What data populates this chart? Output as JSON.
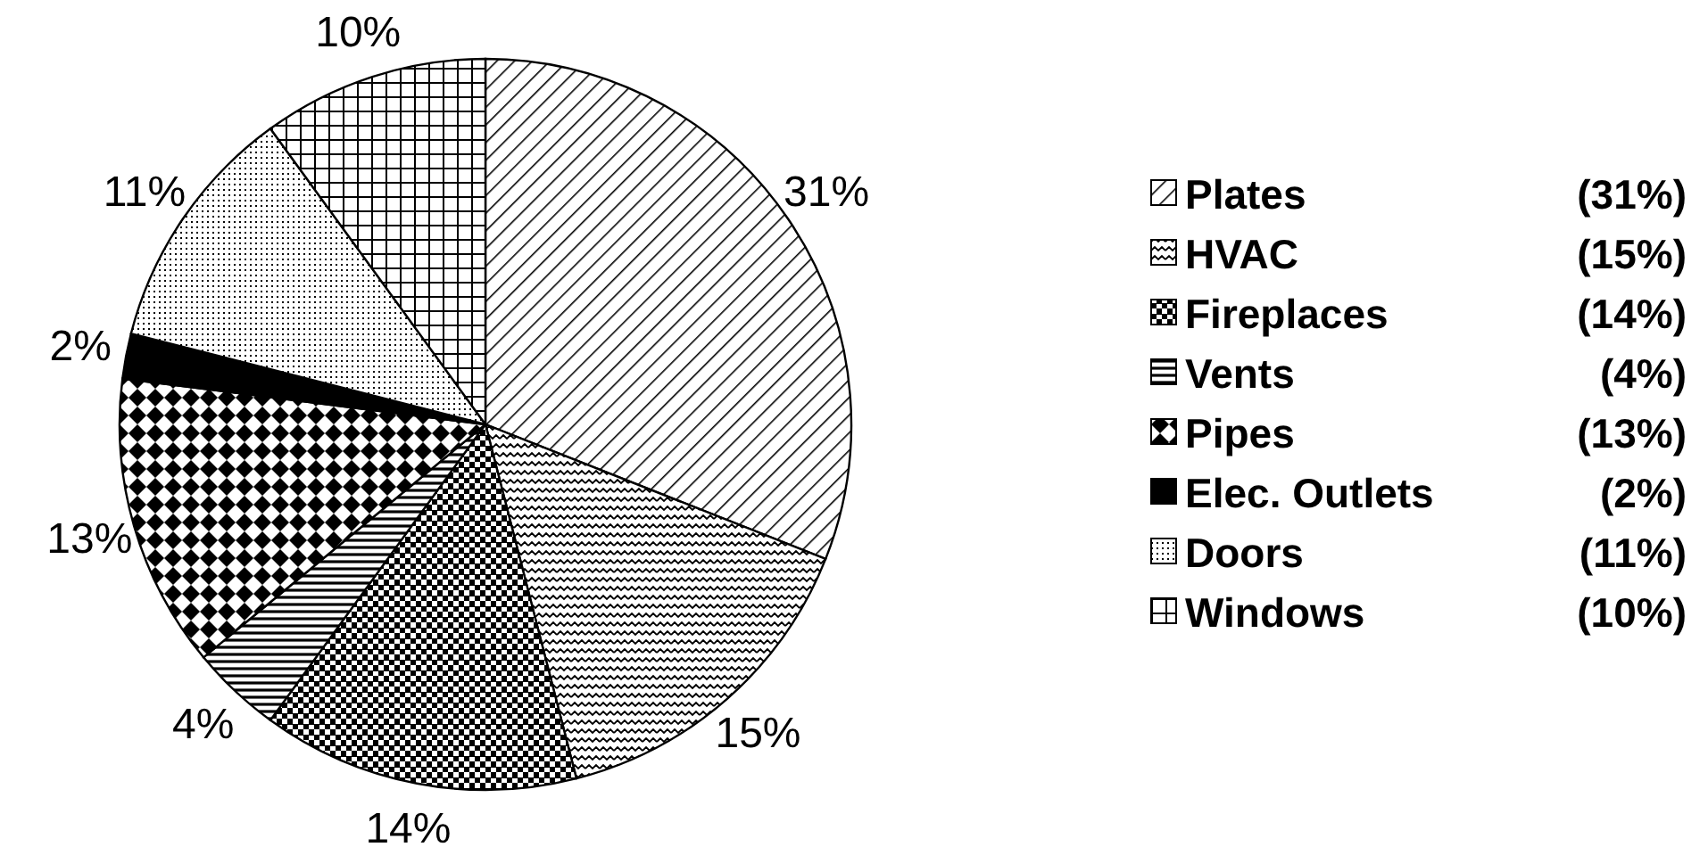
{
  "chart_data": {
    "type": "pie",
    "categories": [
      "Plates",
      "HVAC",
      "Fireplaces",
      "Vents",
      "Pipes",
      "Elec. Outlets",
      "Doors",
      "Windows"
    ],
    "values": [
      31,
      15,
      14,
      4,
      13,
      2,
      11,
      10
    ],
    "value_labels": [
      "31%",
      "15%",
      "14%",
      "4%",
      "13%",
      "2%",
      "11%",
      "10%"
    ],
    "colors": [
      "#000000",
      "#000000",
      "#000000",
      "#000000",
      "#000000",
      "#000000",
      "#000000",
      "#000000"
    ],
    "annotations": [
      "(31%)",
      "(15%)",
      "(14%)",
      "(4%)",
      "(13%)",
      "(2%)",
      "(11%)",
      "(10%)"
    ],
    "legend": "right"
  }
}
